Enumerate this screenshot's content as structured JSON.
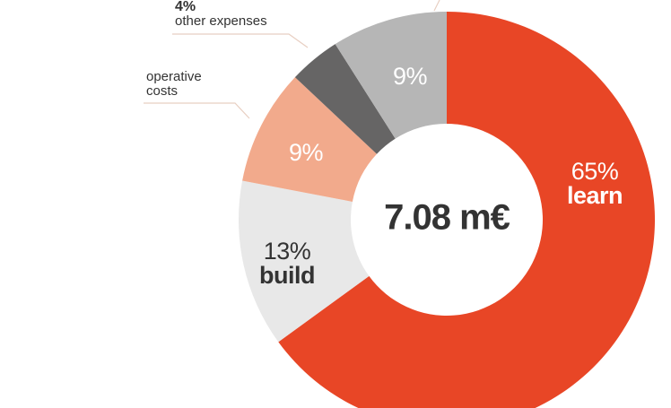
{
  "chart_data": {
    "type": "donut",
    "categories": [
      "learn",
      "build",
      "operative costs",
      "other expenses",
      null
    ],
    "values": [
      65,
      13,
      9,
      4,
      9
    ],
    "value_labels": [
      "65%",
      "13%",
      "9%",
      "4%",
      "9%"
    ],
    "colors": [
      "#e84626",
      "#e8e8e8",
      "#f2aa8c",
      "#666565",
      "#b6b6b6"
    ],
    "center_label": "7.08 m€"
  }
}
